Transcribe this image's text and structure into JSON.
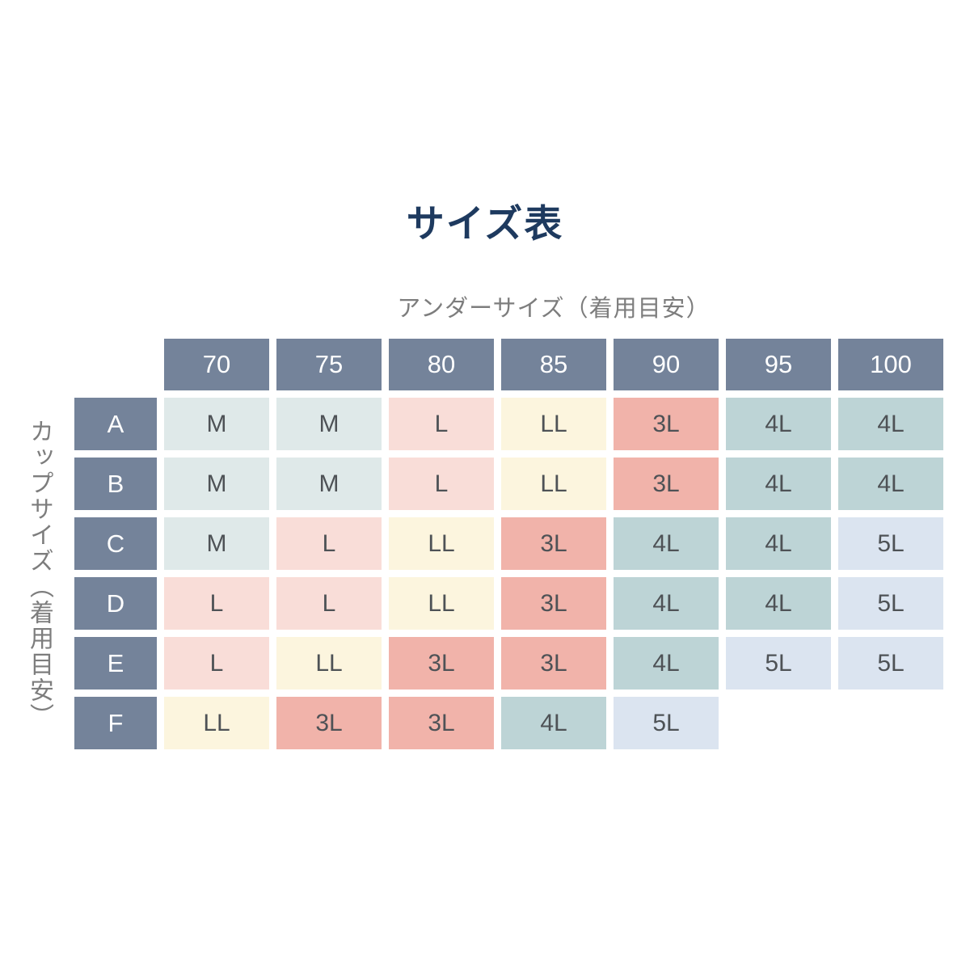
{
  "page": {
    "title": "サイズ表",
    "column_axis_label": "アンダーサイズ（着用目安）",
    "row_axis_label": "カップサイズ（着用目安）"
  },
  "chart_data": {
    "type": "table",
    "title": "サイズ表",
    "x_axis_title": "アンダーサイズ（着用目安）",
    "y_axis_title": "カップサイズ（着用目安）",
    "columns": [
      "70",
      "75",
      "80",
      "85",
      "90",
      "95",
      "100"
    ],
    "rows": [
      "A",
      "B",
      "C",
      "D",
      "E",
      "F"
    ],
    "cells": [
      [
        "M",
        "M",
        "L",
        "LL",
        "3L",
        "4L",
        "4L"
      ],
      [
        "M",
        "M",
        "L",
        "LL",
        "3L",
        "4L",
        "4L"
      ],
      [
        "M",
        "L",
        "LL",
        "3L",
        "4L",
        "4L",
        "5L"
      ],
      [
        "L",
        "L",
        "LL",
        "3L",
        "4L",
        "4L",
        "5L"
      ],
      [
        "L",
        "LL",
        "3L",
        "3L",
        "4L",
        "5L",
        "5L"
      ],
      [
        "LL",
        "3L",
        "3L",
        "4L",
        "5L",
        "",
        ""
      ]
    ]
  },
  "colors": {
    "title_text": "#1E3A5F",
    "axis_label_text": "#7D7D7D",
    "header_bg": "#74839A",
    "header_text": "#FFFFFF",
    "cell_text": "#4E5256",
    "size_colors": {
      "M": "#DFE9E9",
      "L": "#F9DDD8",
      "LL": "#FCF5DE",
      "3L": "#F1B3AA",
      "4L": "#BDD4D6",
      "5L": "#DBE4F0"
    }
  }
}
